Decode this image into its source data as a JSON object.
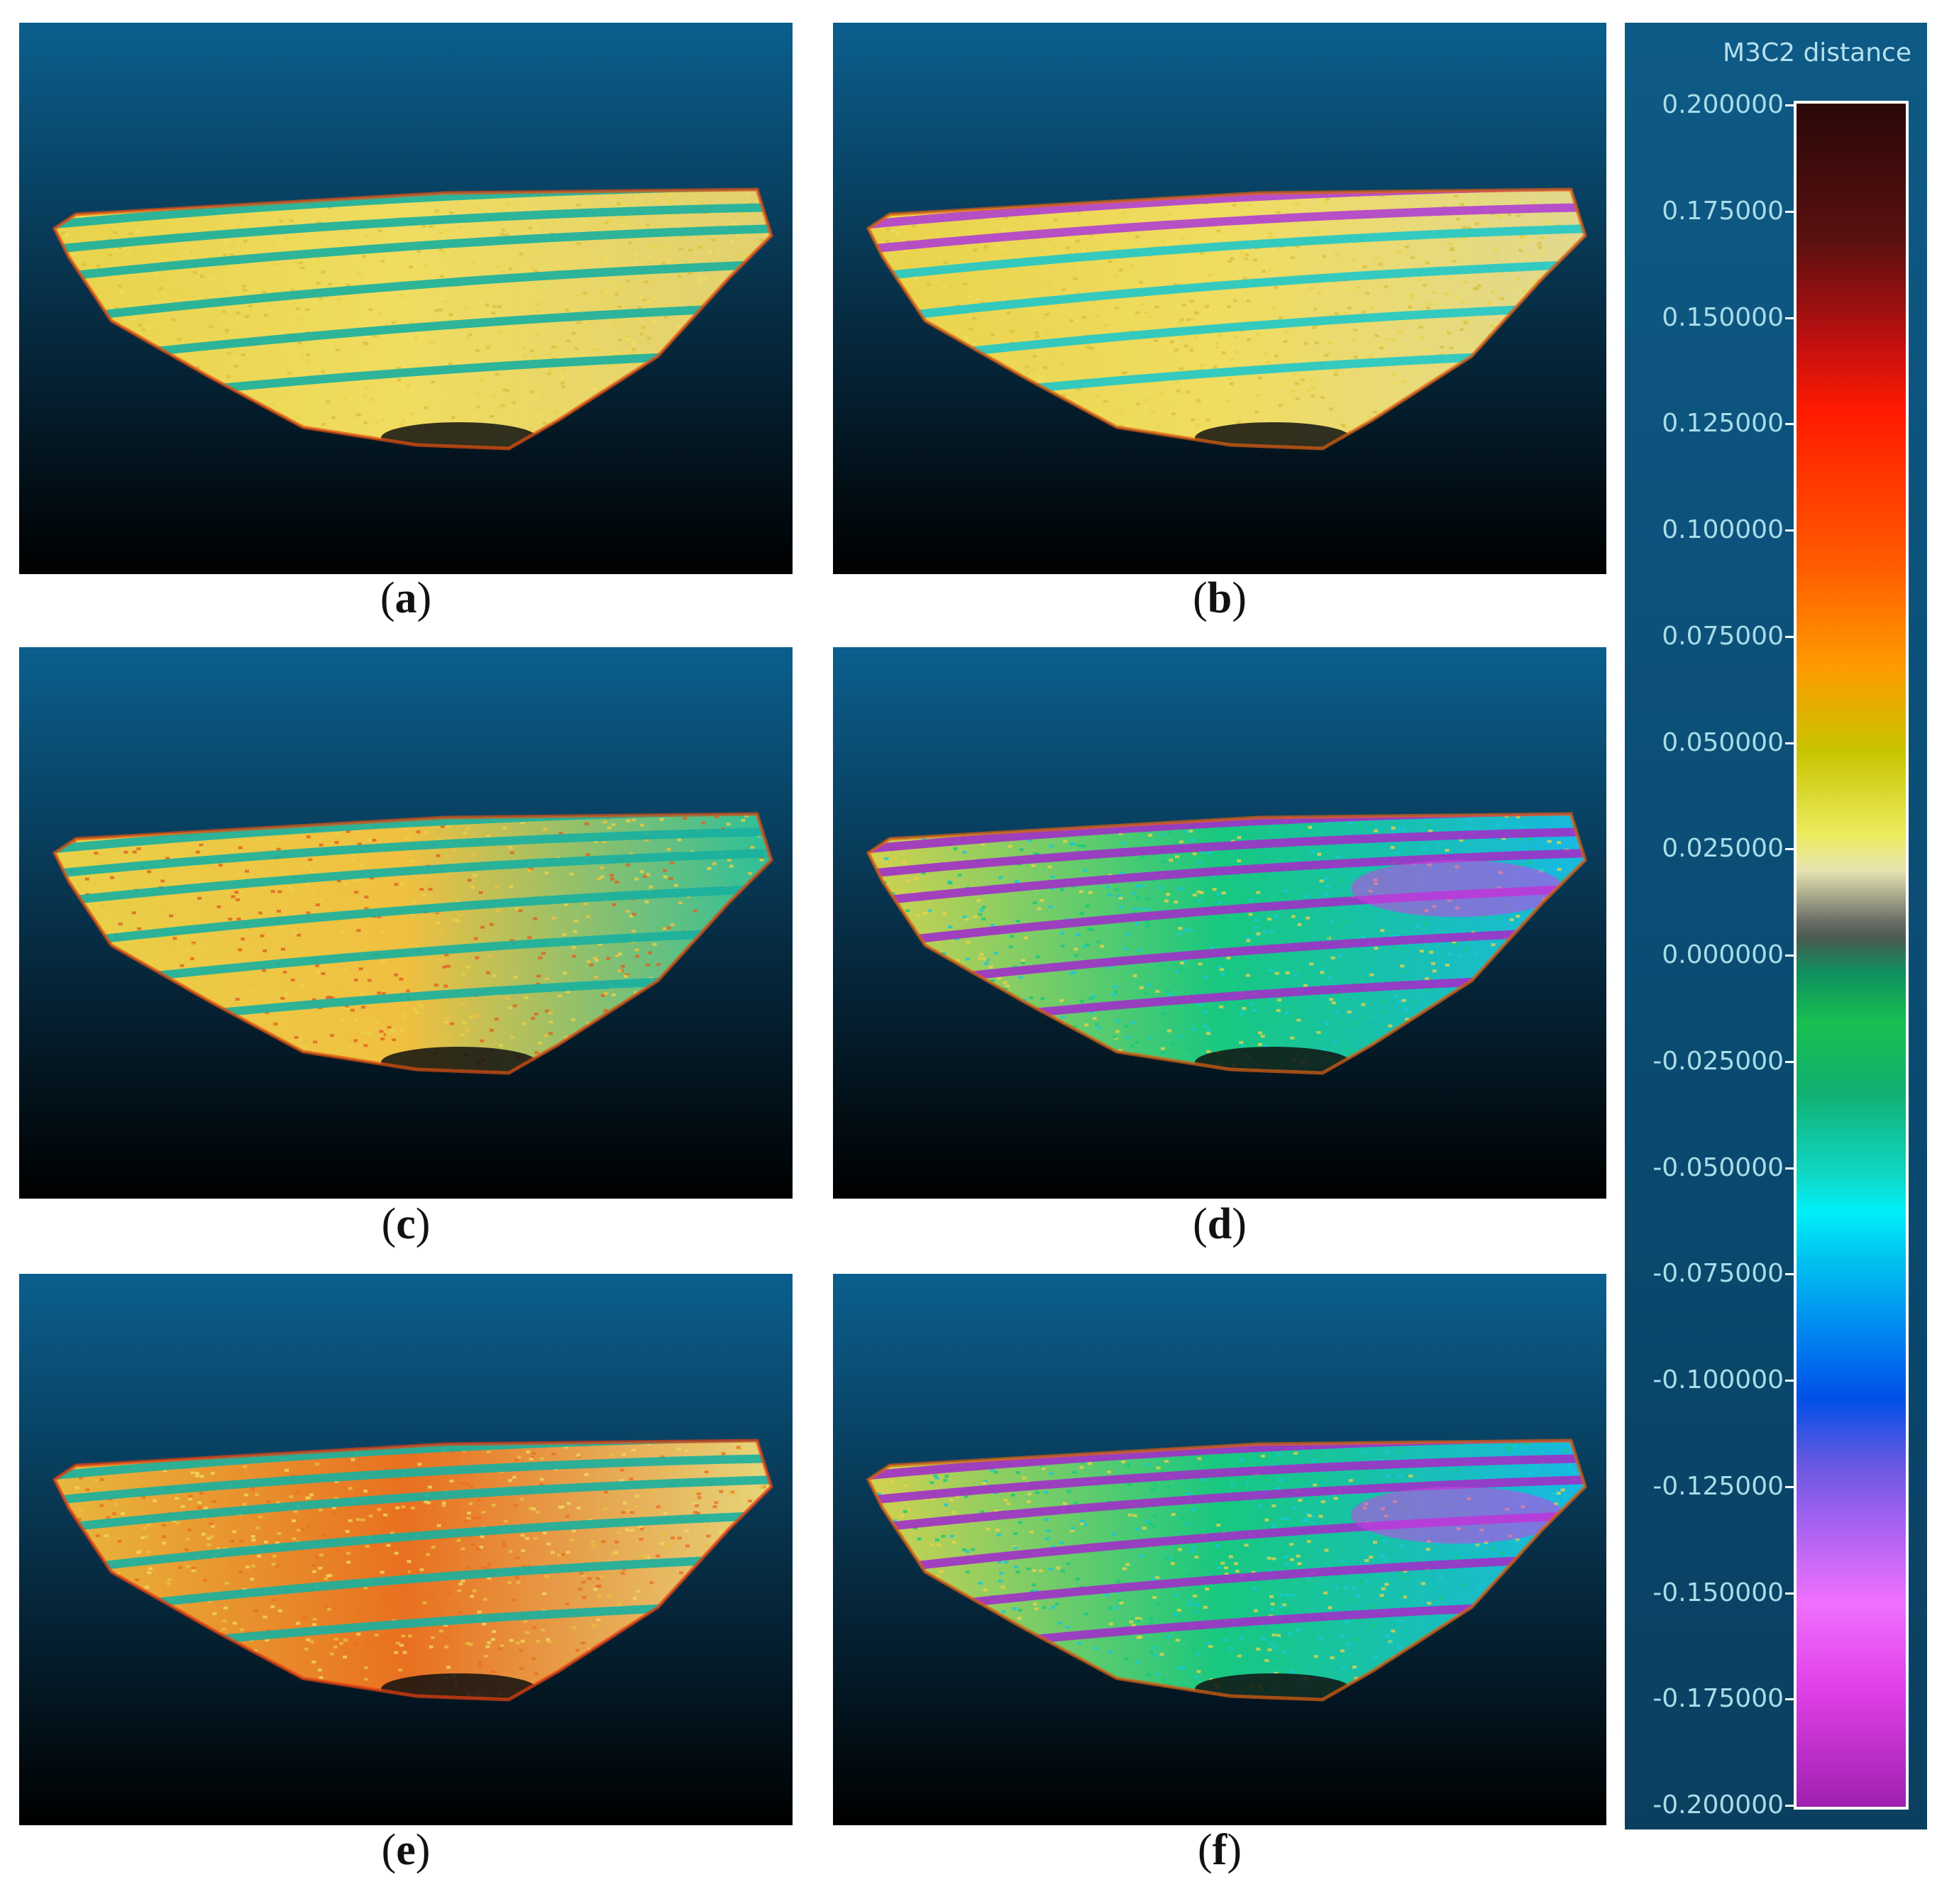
{
  "panels": [
    {
      "id": "a",
      "label": "a",
      "variant": "warm"
    },
    {
      "id": "b",
      "label": "b",
      "variant": "cool-top"
    },
    {
      "id": "c",
      "label": "c",
      "variant": "mixed"
    },
    {
      "id": "d",
      "label": "d",
      "variant": "cool"
    },
    {
      "id": "e",
      "label": "e",
      "variant": "warm2"
    },
    {
      "id": "f",
      "label": "f",
      "variant": "cool"
    }
  ],
  "colorbar": {
    "title": "M3C2 distance",
    "max": 0.2,
    "min": -0.2,
    "ticks": [
      "0.200000",
      "0.175000",
      "0.150000",
      "0.125000",
      "0.100000",
      "0.075000",
      "0.050000",
      "0.025000",
      "0.000000",
      "-0.025000",
      "-0.050000",
      "-0.075000",
      "-0.100000",
      "-0.125000",
      "-0.150000",
      "-0.175000",
      "-0.200000"
    ]
  },
  "colors": {
    "sky_top": "#0b5f8e",
    "sky_bottom": "#000000",
    "warm": "#e8d24a",
    "warm_edge": "#e85a10",
    "teal": "#10b8a0",
    "cyan": "#18d0e0",
    "magenta": "#c040e0",
    "purple": "#7a20a0"
  }
}
